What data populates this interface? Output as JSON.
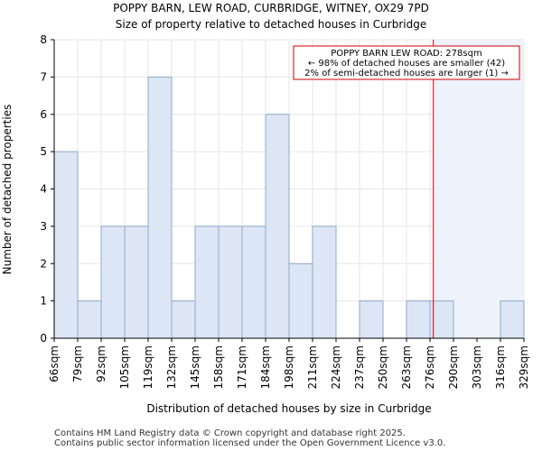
{
  "chart_data": {
    "type": "bar",
    "title": "POPPY BARN, LEW ROAD, CURBRIDGE, WITNEY, OX29 7PD",
    "subtitle": "Size of property relative to detached houses in Curbridge",
    "xlabel": "Distribution of detached houses by size in Curbridge",
    "ylabel": "Number of detached properties",
    "ylim": [
      0,
      8
    ],
    "yticks": [
      0,
      1,
      2,
      3,
      4,
      5,
      6,
      7,
      8
    ],
    "bin_edges": [
      "66sqm",
      "79sqm",
      "92sqm",
      "105sqm",
      "119sqm",
      "132sqm",
      "145sqm",
      "158sqm",
      "171sqm",
      "184sqm",
      "198sqm",
      "211sqm",
      "224sqm",
      "237sqm",
      "250sqm",
      "263sqm",
      "276sqm",
      "290sqm",
      "303sqm",
      "316sqm",
      "329sqm"
    ],
    "values": [
      5,
      1,
      3,
      3,
      7,
      1,
      3,
      3,
      3,
      6,
      2,
      3,
      0,
      1,
      0,
      1,
      1,
      0,
      0,
      1
    ],
    "bar_color": "#dce6f5",
    "bar_edge_color": "#8fa8cc",
    "highlight_region_color": "#eef2fb",
    "marker": {
      "value_sqm": 278,
      "color": "#cc0000"
    },
    "annotation": {
      "lines": [
        "POPPY BARN LEW ROAD: 278sqm",
        "← 98% of detached houses are smaller (42)",
        "2% of semi-detached houses are larger (1) →"
      ]
    },
    "grid": true,
    "grid_color": "#e6e6e6"
  },
  "footer": {
    "line1": "Contains HM Land Registry data © Crown copyright and database right 2025.",
    "line2": "Contains public sector information licensed under the Open Government Licence v3.0."
  }
}
